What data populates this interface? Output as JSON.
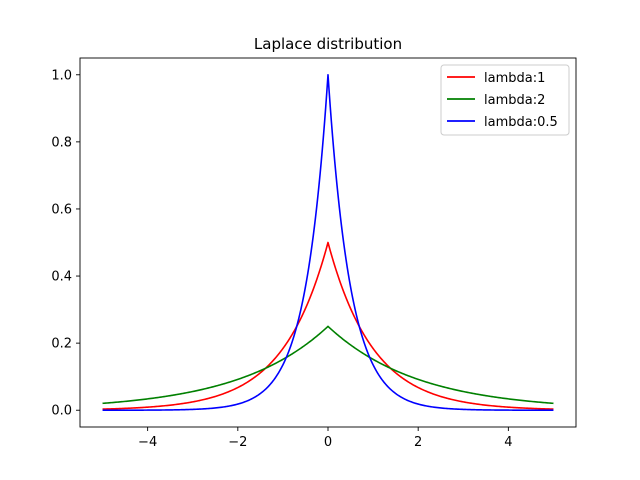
{
  "chart_data": {
    "type": "line",
    "title": "Laplace distribution",
    "xlabel": "",
    "ylabel": "",
    "xlim": [
      -5.5,
      5.5
    ],
    "ylim": [
      -0.05,
      1.05
    ],
    "xticks": [
      -4,
      -2,
      0,
      2,
      4
    ],
    "xtick_labels": [
      "−4",
      "−2",
      "0",
      "2",
      "4"
    ],
    "yticks": [
      0.0,
      0.2,
      0.4,
      0.6,
      0.8,
      1.0
    ],
    "ytick_labels": [
      "0.0",
      "0.2",
      "0.4",
      "0.6",
      "0.8",
      "1.0"
    ],
    "grid": false,
    "legend_position": "top-right",
    "x_range": [
      -5,
      5
    ],
    "series": [
      {
        "name": "lambda:1",
        "color": "#ff0000",
        "formula": "laplace",
        "lambda": 1,
        "peak": 0.5
      },
      {
        "name": "lambda:2",
        "color": "#008000",
        "formula": "laplace",
        "lambda": 2,
        "peak": 0.25
      },
      {
        "name": "lambda:0.5",
        "color": "#0000ff",
        "formula": "laplace",
        "lambda": 0.5,
        "peak": 1.0
      }
    ]
  }
}
